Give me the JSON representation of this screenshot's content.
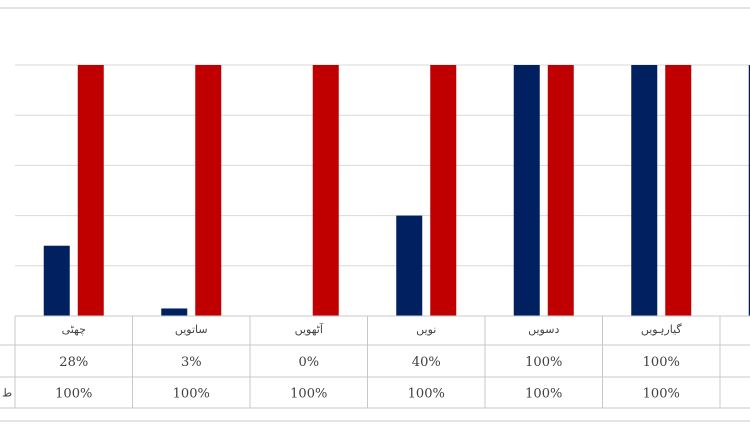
{
  "chart_data": {
    "type": "bar",
    "categories": [
      "چھٹی",
      "ساتویں",
      "آٹھویں",
      "نویں",
      "دسویں",
      "گیارہویں",
      ""
    ],
    "series": [
      {
        "values": [
          28,
          3,
          0,
          40,
          100,
          100,
          100
        ],
        "color": "#002060"
      },
      {
        "values": [
          100,
          100,
          100,
          100,
          100,
          100,
          null
        ],
        "color": "#c00000"
      }
    ],
    "data_table": [
      [
        "28%",
        "3%",
        "0%",
        "40%",
        "100%",
        "100%",
        ""
      ],
      [
        "100%",
        "100%",
        "100%",
        "100%",
        "100%",
        "100%",
        ""
      ]
    ],
    "row_keys": [
      "",
      "ط"
    ],
    "ylim": [
      0,
      100
    ],
    "grid": true
  }
}
